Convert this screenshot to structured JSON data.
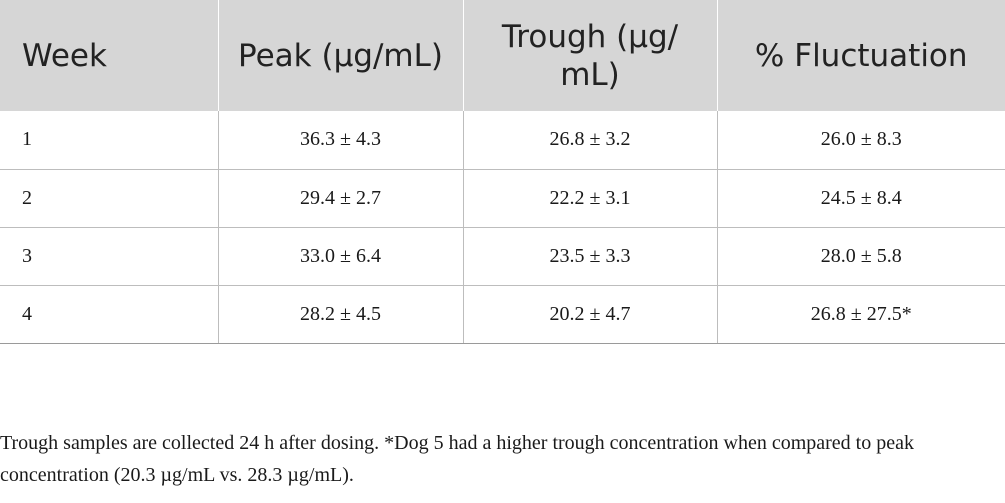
{
  "table": {
    "headers": [
      "Week",
      "Peak (µg/​mL)",
      "Trough (µg/​mL)",
      "% Fluctuation"
    ],
    "rows": [
      [
        "1",
        "36.3 ± 4.3",
        "26.8 ± 3.2",
        "26.0 ± 8.3"
      ],
      [
        "2",
        "29.4 ± 2.7",
        "22.2 ± 3.1",
        "24.5 ± 8.4"
      ],
      [
        "3",
        "33.0 ± 6.4",
        "23.5 ± 3.3",
        "28.0 ± 5.8"
      ],
      [
        "4",
        "28.2 ± 4.5",
        "20.2 ± 4.7",
        "26.8 ± 27.5*"
      ]
    ]
  },
  "footnote": "Trough samples are collected 24 h after dosing. *Dog 5 had a higher trough concentration when compared to peak concentration (20.3 µg/mL vs. 28.3 µg/mL).",
  "colors": {
    "header_background": "#d6d6d6",
    "rule": "#bdbdbd",
    "text": "#1a1a1a"
  }
}
